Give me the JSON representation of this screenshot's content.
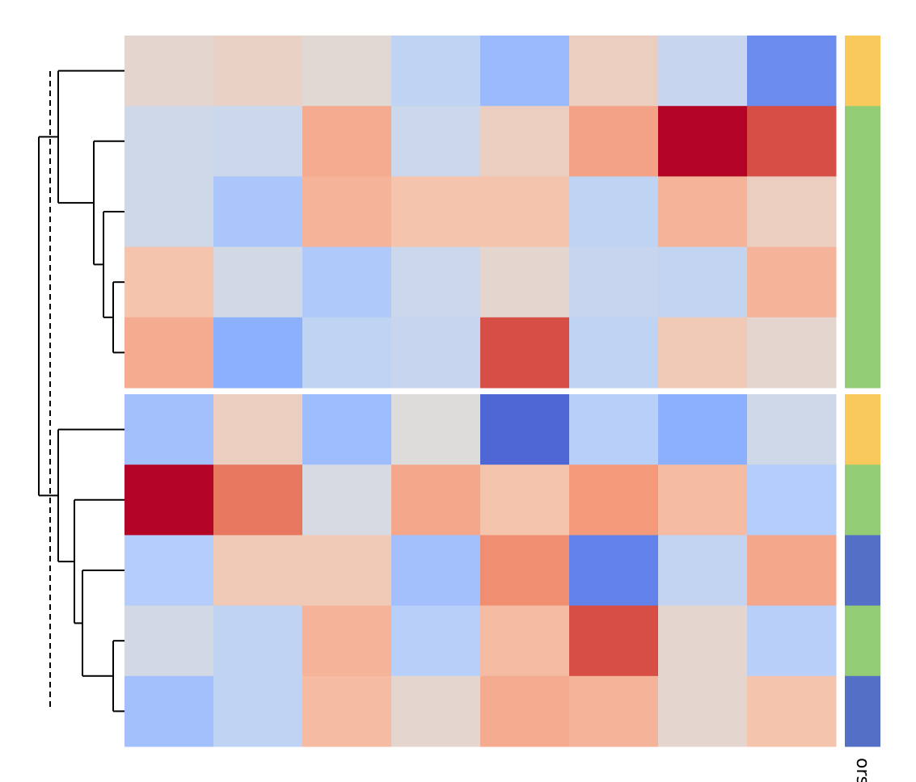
{
  "chart_data": {
    "type": "heatmap",
    "title": "",
    "xlabel": "",
    "ylabel": "",
    "column_count": 8,
    "row_groups": [
      {
        "rows": [
          {
            "values": [
              0.15,
              0.25,
              0.1,
              -0.4,
              -0.85,
              0.3,
              -0.3,
              -1.4
            ],
            "row_color": "#F9C95B"
          },
          {
            "values": [
              -0.2,
              -0.25,
              0.8,
              -0.25,
              0.3,
              0.9,
              2.0,
              1.6
            ],
            "row_color": "#92CC75"
          },
          {
            "values": [
              -0.2,
              -0.65,
              0.7,
              0.5,
              0.5,
              -0.4,
              0.7,
              0.3
            ],
            "row_color": "#92CC75"
          },
          {
            "values": [
              0.5,
              -0.15,
              -0.6,
              -0.25,
              0.15,
              -0.3,
              -0.35,
              0.7
            ],
            "row_color": "#92CC75"
          },
          {
            "values": [
              0.8,
              -1.0,
              -0.4,
              -0.3,
              1.6,
              -0.4,
              0.4,
              0.15
            ],
            "row_color": "#92CC75"
          }
        ]
      },
      {
        "rows": [
          {
            "values": [
              -0.75,
              0.3,
              -0.8,
              0.02,
              -1.75,
              -0.5,
              -1.0,
              -0.2
            ],
            "row_color": "#F9C95B"
          },
          {
            "values": [
              2.0,
              1.3,
              -0.1,
              0.85,
              0.5,
              1.0,
              0.6,
              -0.55
            ],
            "row_color": "#92CC75"
          },
          {
            "values": [
              -0.55,
              0.4,
              0.4,
              -0.75,
              1.1,
              -1.5,
              -0.35,
              0.85
            ],
            "row_color": "#5470C6"
          },
          {
            "values": [
              -0.15,
              -0.4,
              0.7,
              -0.5,
              0.6,
              1.6,
              0.15,
              -0.5
            ],
            "row_color": "#92CC75"
          },
          {
            "values": [
              -0.75,
              -0.4,
              0.6,
              0.15,
              0.8,
              0.7,
              0.15,
              0.5
            ],
            "row_color": "#5470C6"
          }
        ]
      }
    ],
    "row_colors_label": "ors",
    "colormap": "coolwarm",
    "vmin": -2.0,
    "vmax": 2.0,
    "dendrogram": "left",
    "cut_line": "dashed",
    "grid": false,
    "legend": "none"
  }
}
